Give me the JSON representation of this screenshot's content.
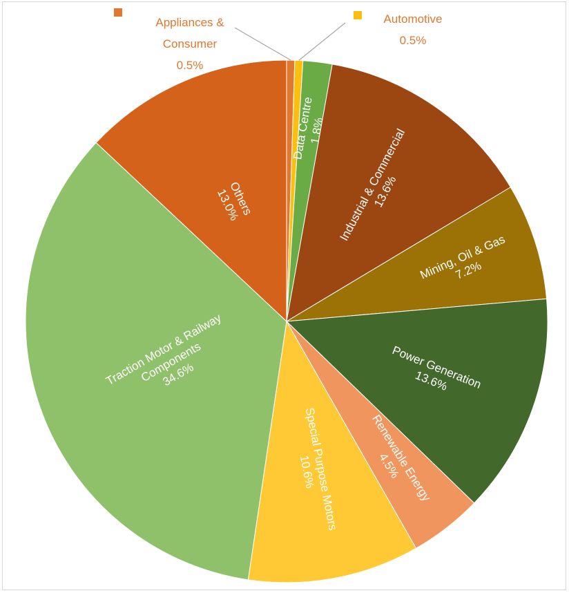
{
  "chart_data": {
    "type": "pie",
    "title": "",
    "slices": [
      {
        "name": "Appliances & Consumer",
        "value": 0.5,
        "label": "0.5%",
        "color": "#e0782f"
      },
      {
        "name": "Automotive",
        "value": 0.5,
        "label": "0.5%",
        "color": "#fbbf0f"
      },
      {
        "name": "Data Centre",
        "value": 1.8,
        "label": "1.8%",
        "color": "#6aab46"
      },
      {
        "name": "Industrial & Commercial",
        "value": 13.6,
        "label": "13.6%",
        "color": "#9c4612"
      },
      {
        "name": "Mining, Oil & Gas",
        "value": 7.2,
        "label": "7.2%",
        "color": "#9c7206"
      },
      {
        "name": "Power Generation",
        "value": 13.6,
        "label": "13.6%",
        "color": "#43682c"
      },
      {
        "name": "Renewable Energy",
        "value": 4.5,
        "label": "4.5%",
        "color": "#f0955e"
      },
      {
        "name": "Special Purpose Motors",
        "value": 10.6,
        "label": "10.6%",
        "color": "#ffc935"
      },
      {
        "name": "Traction Motor & Railway Components",
        "value": 34.6,
        "label": "34.6%",
        "color": "#8fc16b"
      },
      {
        "name": "Others",
        "value": 13.0,
        "label": "13.0%",
        "color": "#d4621a"
      }
    ],
    "label_lines": {
      "Appliances & Consumer": [
        "Appliances &",
        "Consumer",
        "0.5%"
      ],
      "Automotive": [
        "Automotive",
        "0.5%"
      ],
      "Data Centre": [
        "Data Centre",
        "1.8%"
      ],
      "Industrial & Commercial": [
        "Industrial & Commercial",
        "13.6%"
      ],
      "Mining, Oil & Gas": [
        "Mining, Oil & Gas",
        "7.2%"
      ],
      "Power Generation": [
        "Power Generation",
        "13.6%"
      ],
      "Renewable Energy": [
        "Renewable Energy",
        "4.5%"
      ],
      "Special Purpose Motors": [
        "Special Purpose Motors",
        "10.6%"
      ],
      "Traction Motor & Railway Components": [
        "Traction Motor & Railway",
        "Components",
        "34.6%"
      ],
      "Others": [
        "Others",
        "13.0%"
      ]
    },
    "external_label_color": "#e0782f",
    "legend": "none"
  }
}
